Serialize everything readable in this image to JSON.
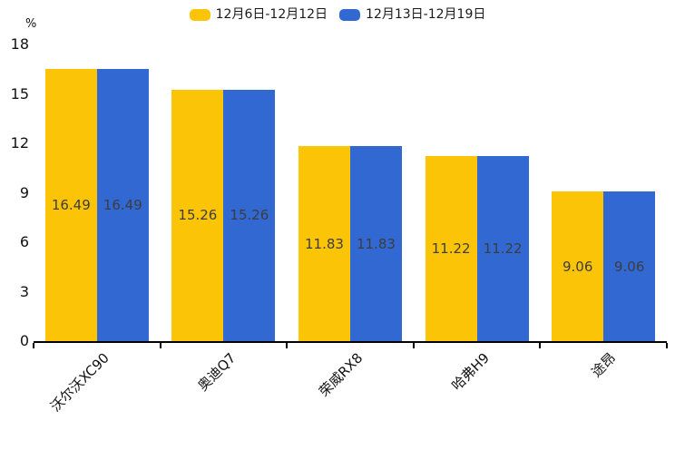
{
  "chart_data": {
    "type": "bar",
    "title": "",
    "ylabel": "%",
    "xlabel": "",
    "categories": [
      "沃尔沃XC90",
      "奥迪Q7",
      "荣威RX8",
      "哈弗H9",
      "途昂"
    ],
    "series": [
      {
        "name": "12月6日-12月12日",
        "color": "#fcc406",
        "values": [
          16.49,
          15.26,
          11.83,
          11.22,
          9.06
        ]
      },
      {
        "name": "12月13日-12月19日",
        "color": "#3168d2",
        "values": [
          16.49,
          15.26,
          11.83,
          11.22,
          9.06
        ]
      }
    ],
    "value_labels": [
      [
        "16.49",
        "15.26",
        "11.83",
        "11.22",
        "9.06"
      ],
      [
        "16.49",
        "15.26",
        "11.83",
        "11.22",
        "9.06"
      ]
    ],
    "yticks": [
      "0",
      "3",
      "6",
      "9",
      "12",
      "15",
      "18"
    ],
    "ylim": [
      0,
      18
    ],
    "grid": false,
    "legend_position": "top",
    "value_label_color": "#3d3d3d",
    "axis_color": "#000000"
  }
}
